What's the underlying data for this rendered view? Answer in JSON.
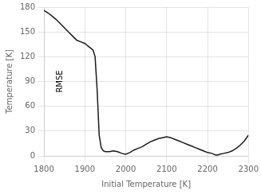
{
  "chart_data": {
    "type": "line",
    "xlabel": "Initial Temperature [K]",
    "ylabel": "Temperature [K]",
    "annotations": [
      "RMSE"
    ],
    "color": "#1a1a1a",
    "xlim": [
      1800,
      2300
    ],
    "ylim": [
      0,
      180
    ],
    "xticks": [
      1800,
      1900,
      2000,
      2100,
      2200,
      2300
    ],
    "yticks": [
      0,
      30,
      60,
      90,
      120,
      150,
      180
    ],
    "grid": true,
    "x": [
      1800,
      1810,
      1820,
      1830,
      1840,
      1850,
      1860,
      1870,
      1880,
      1890,
      1900,
      1905,
      1910,
      1915,
      1920,
      1925,
      1930,
      1935,
      1940,
      1945,
      1950,
      1960,
      1970,
      1980,
      1990,
      2000,
      2010,
      2020,
      2030,
      2040,
      2050,
      2060,
      2070,
      2080,
      2090,
      2100,
      2110,
      2120,
      2130,
      2140,
      2150,
      2160,
      2170,
      2180,
      2190,
      2200,
      2210,
      2215,
      2220,
      2225,
      2230,
      2240,
      2250,
      2260,
      2270,
      2280,
      2290,
      2300
    ],
    "values": [
      176,
      173,
      169,
      165,
      160,
      155,
      150,
      145,
      140,
      138,
      136,
      134,
      132,
      130,
      128,
      120,
      80,
      25,
      10,
      6,
      5,
      5,
      6,
      5,
      3,
      2,
      4,
      7,
      9,
      11,
      14,
      17,
      19,
      21,
      22,
      23,
      22,
      20,
      18,
      16,
      14,
      12,
      10,
      8,
      6,
      4,
      3,
      2,
      1,
      1,
      2,
      3,
      4,
      6,
      9,
      13,
      18,
      25
    ]
  }
}
